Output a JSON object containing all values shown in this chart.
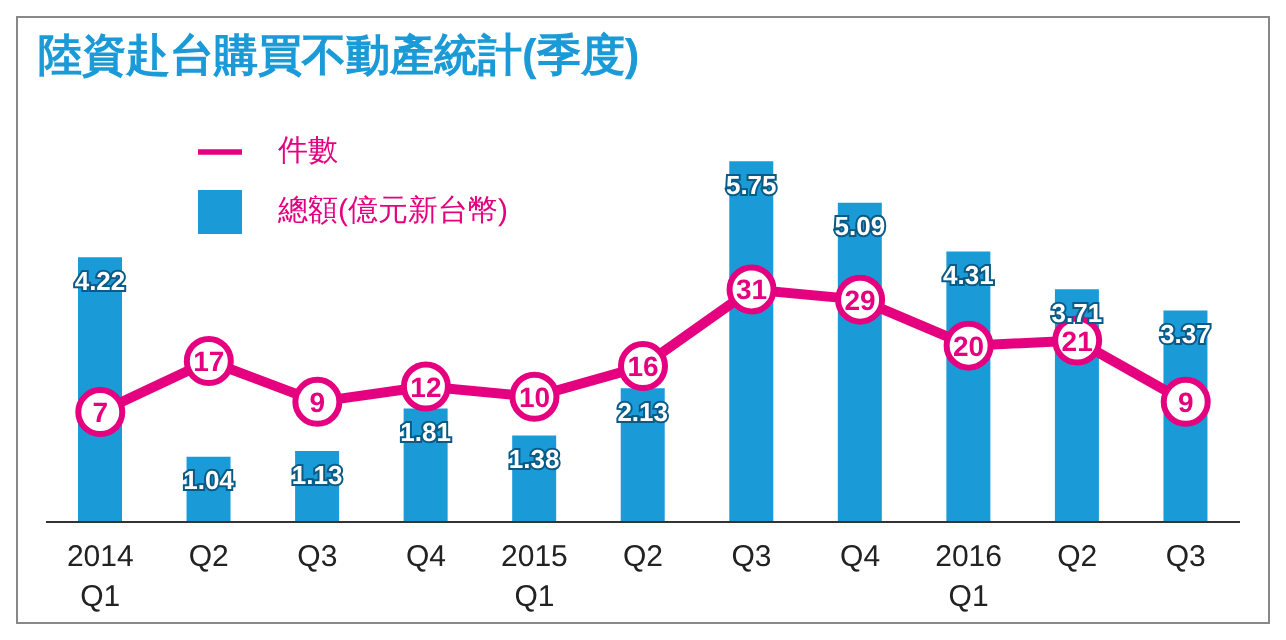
{
  "chart_data": {
    "type": "bar",
    "title": "陸資赴台購買不動產統計(季度)",
    "categories": [
      "2014\nQ1",
      "Q2",
      "Q3",
      "Q4",
      "2015\nQ1",
      "Q2",
      "Q3",
      "Q4",
      "2016\nQ1",
      "Q2",
      "Q3"
    ],
    "series": [
      {
        "name": "件數",
        "type": "line",
        "axis": "y2",
        "color": "#e4007f",
        "values": [
          7,
          17,
          9,
          12,
          10,
          16,
          31,
          29,
          20,
          21,
          9
        ]
      },
      {
        "name": "總額(億元新台幣)",
        "color": "#1a9bd7",
        "values": [
          4.22,
          1.04,
          1.13,
          1.81,
          1.38,
          2.13,
          5.75,
          5.09,
          4.31,
          3.71,
          3.37
        ]
      }
    ],
    "data_labels": true,
    "marker": "circle",
    "legend": "top left"
  }
}
